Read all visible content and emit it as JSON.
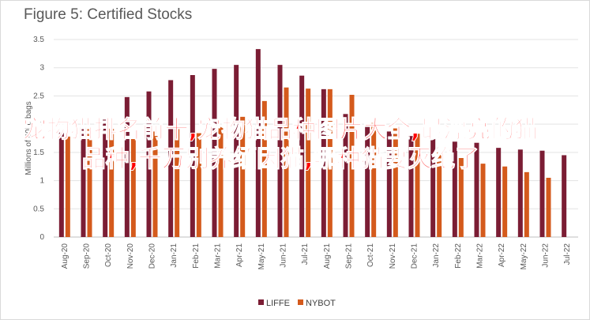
{
  "chart_data": {
    "type": "bar",
    "title": "Figure 5: Certified Stocks",
    "ylabel": "Millions of 60kg bags",
    "xlabel": "",
    "ylim": [
      0,
      3.5
    ],
    "yticks": [
      0,
      0.5,
      1,
      1.5,
      2,
      2.5,
      3,
      3.5
    ],
    "grid": true,
    "legend_position": "bottom",
    "categories": [
      "Aug-20",
      "Sep-20",
      "Oct-20",
      "Nov-20",
      "Dec-20",
      "Jan-21",
      "Feb-21",
      "Mar-21",
      "Apr-21",
      "May-21",
      "Jun-21",
      "Jul-21",
      "Aug-21",
      "Sep-21",
      "Oct-21",
      "Nov-21",
      "Dec-21",
      "Jan-22",
      "Feb-22",
      "Mar-22",
      "Apr-22",
      "May-22",
      "Jun-22",
      "Jul-22"
    ],
    "series": [
      {
        "name": "LIFFE",
        "color": "#7b1d34",
        "values": [
          1.85,
          1.93,
          2.08,
          2.48,
          2.58,
          2.78,
          2.87,
          2.98,
          3.05,
          3.33,
          3.05,
          2.86,
          2.62,
          2.18,
          1.95,
          1.87,
          1.79,
          1.74,
          1.69,
          1.67,
          1.58,
          1.55,
          1.53,
          1.45
        ]
      },
      {
        "name": "NYBOT",
        "color": "#d45a1c",
        "values": [
          1.78,
          1.95,
          1.92,
          1.78,
          1.87,
          1.97,
          1.84,
          1.95,
          2.13,
          2.41,
          2.65,
          2.63,
          2.62,
          2.52,
          2.02,
          1.95,
          1.83,
          1.5,
          1.4,
          1.3,
          1.25,
          1.15,
          1.05,
          null
        ]
      }
    ]
  },
  "overlay_text": "宠物猫排名前十,宠物猫品种图片大全,最漂亮的猫品种,千万别养缅因猫,哪种猫要灭绝了"
}
